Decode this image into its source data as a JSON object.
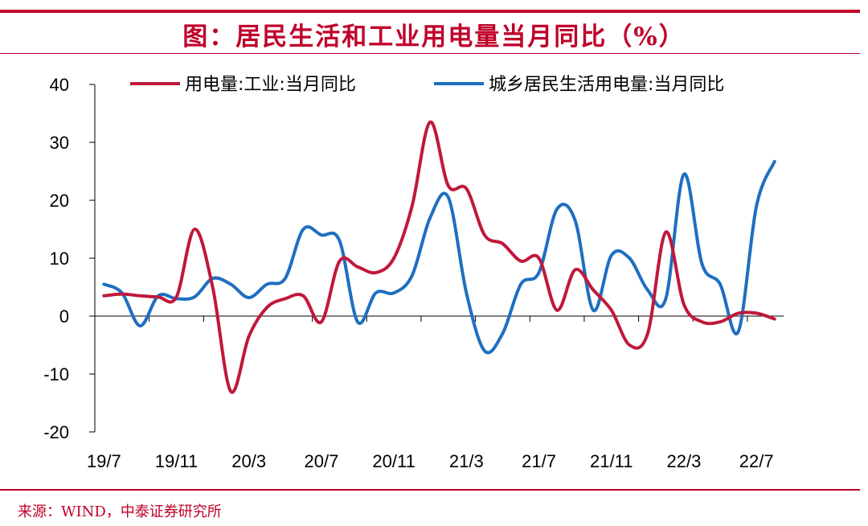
{
  "title": "图：居民生活和工业用电量当月同比（%）",
  "source": "来源：WIND，中泰证券研究所",
  "chart_data": {
    "type": "line",
    "x": [
      "19/7",
      "19/8",
      "19/9",
      "19/10",
      "19/11",
      "19/12",
      "20/1",
      "20/2",
      "20/3",
      "20/4",
      "20/5",
      "20/6",
      "20/7",
      "20/8",
      "20/9",
      "20/10",
      "20/11",
      "20/12",
      "21/1",
      "21/2",
      "21/3",
      "21/4",
      "21/5",
      "21/6",
      "21/7",
      "21/8",
      "21/9",
      "21/10",
      "21/11",
      "21/12",
      "22/1",
      "22/2",
      "22/3",
      "22/4",
      "22/5",
      "22/6",
      "22/7",
      "22/8"
    ],
    "xtick_labels": [
      "19/7",
      "19/11",
      "20/3",
      "20/7",
      "20/11",
      "21/3",
      "21/7",
      "21/11",
      "22/3",
      "22/7"
    ],
    "yticks": [
      -20,
      -10,
      0,
      10,
      20,
      30,
      40
    ],
    "ylim": [
      -20,
      40
    ],
    "series": [
      {
        "name": "用电量:工业:当月同比",
        "color": "#c0183c",
        "values": [
          3.5,
          3.8,
          3.5,
          3.3,
          3.3,
          15.0,
          5.0,
          -13.0,
          -3.5,
          1.5,
          3.0,
          3.5,
          -1.0,
          9.5,
          8.5,
          7.5,
          10.0,
          19.0,
          33.5,
          22.5,
          22.0,
          14.0,
          12.5,
          9.5,
          10.0,
          1.0,
          8.0,
          4.5,
          1.0,
          -5.0,
          -3.0,
          14.5,
          2.0,
          -1.0,
          -1.0,
          0.5,
          0.5,
          -0.5
        ]
      },
      {
        "name": "城乡居民生活用电量:当月同比",
        "color": "#1e6fc0",
        "values": [
          5.5,
          4.0,
          -1.7,
          3.5,
          3.0,
          3.3,
          6.5,
          5.5,
          3.2,
          5.5,
          6.5,
          15.0,
          14.0,
          13.0,
          -1.0,
          4.0,
          4.0,
          7.0,
          17.0,
          20.5,
          4.0,
          -6.0,
          -3.0,
          5.5,
          7.5,
          18.5,
          16.5,
          1.0,
          10.5,
          10.0,
          4.5,
          3.0,
          24.5,
          9.0,
          5.5,
          -2.7,
          19.0,
          26.7
        ]
      }
    ],
    "grid": false,
    "legend_position": "top"
  }
}
